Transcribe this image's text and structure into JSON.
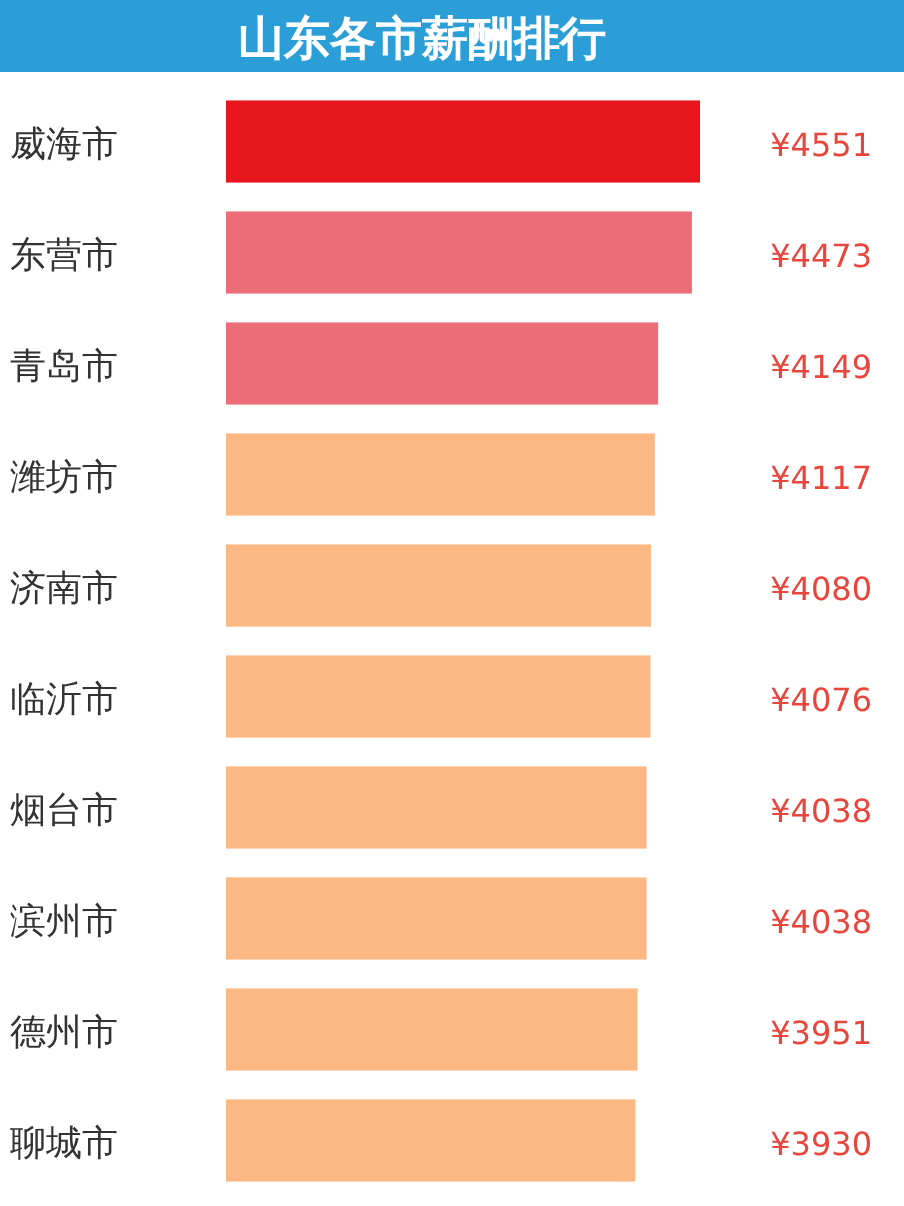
{
  "chart_data": {
    "type": "bar",
    "orientation": "horizontal",
    "title": "山东各市薪酬排行",
    "categories": [
      "威海市",
      "东营市",
      "青岛市",
      "潍坊市",
      "济南市",
      "临沂市",
      "烟台市",
      "滨州市",
      "德州市",
      "聊城市"
    ],
    "values": [
      4551,
      4473,
      4149,
      4117,
      4080,
      4076,
      4038,
      4038,
      3951,
      3930
    ],
    "value_labels": [
      "¥4551",
      "¥4473",
      "¥4149",
      "¥4117",
      "¥4080",
      "¥4076",
      "¥4038",
      "¥4038",
      "¥3951",
      "¥3930"
    ],
    "colors": [
      "#e8161f",
      "#ec6c78",
      "#ec6c78",
      "#fbb883",
      "#fbb883",
      "#fbb883",
      "#fbb883",
      "#fbb883",
      "#fbb883",
      "#fbb883"
    ]
  }
}
